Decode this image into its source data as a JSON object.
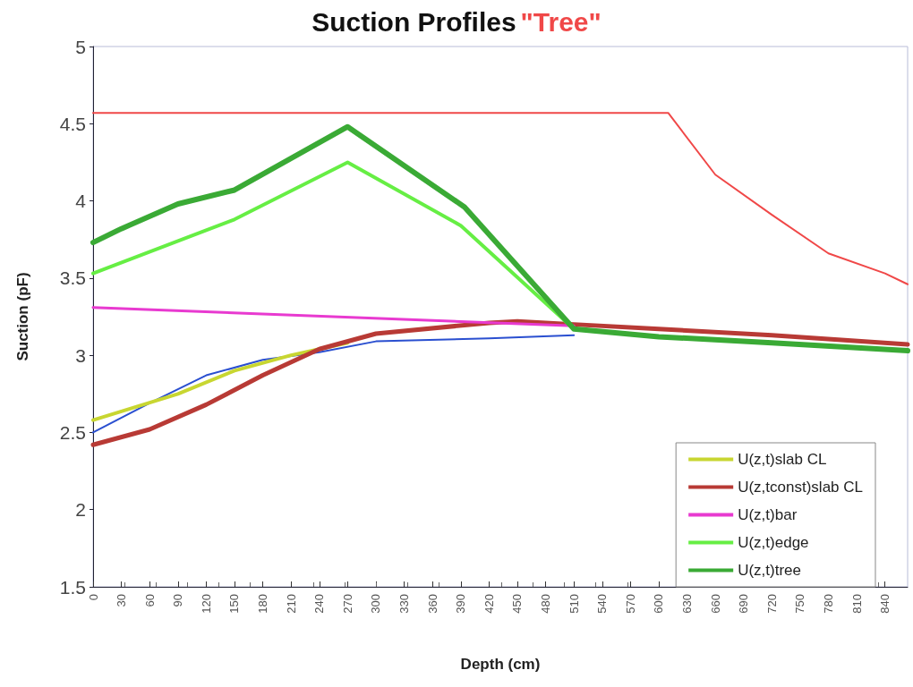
{
  "chart_data": {
    "type": "line",
    "title": "Suction Profiles",
    "subtitle": "\"Tree\"",
    "xlabel": "Depth (cm)",
    "ylabel": "Suction (pF)",
    "xlim": [
      0,
      864
    ],
    "xticks": [
      0,
      30,
      60,
      90,
      120,
      150,
      180,
      210,
      240,
      270,
      300,
      330,
      360,
      390,
      420,
      450,
      480,
      510,
      540,
      570,
      600,
      630,
      660,
      690,
      720,
      750,
      780,
      810,
      840
    ],
    "ylim": [
      1.5,
      5
    ],
    "yticks": [
      1.5,
      2,
      2.5,
      3,
      3.5,
      4,
      4.5,
      5
    ],
    "grid": false,
    "legend": "bottom right",
    "marker": "none",
    "line_style": "solid",
    "series": [
      {
        "color": "#f04848",
        "x": [
          0,
          610,
          660,
          720,
          780,
          840,
          864
        ],
        "values": [
          4.57,
          4.57,
          4.17,
          3.91,
          3.66,
          3.53,
          3.46
        ]
      },
      {
        "color": "#2a4fd0",
        "x": [
          0,
          60,
          120,
          180,
          240,
          300,
          420,
          510
        ],
        "values": [
          2.5,
          2.69,
          2.87,
          2.97,
          3.02,
          3.09,
          3.11,
          3.13
        ]
      },
      {
        "name": "U(z,t)slab CL",
        "color": "#c8d631",
        "x": [
          0,
          90,
          150,
          210,
          240,
          270
        ],
        "values": [
          2.58,
          2.75,
          2.9,
          3.0,
          3.04,
          3.08
        ]
      },
      {
        "name": "U(z,tconst)slab CL",
        "color": "#b83a35",
        "x": [
          0,
          60,
          120,
          180,
          240,
          300,
          420,
          450,
          510,
          600,
          720,
          864
        ],
        "values": [
          2.42,
          2.52,
          2.68,
          2.87,
          3.04,
          3.14,
          3.21,
          3.22,
          3.2,
          3.17,
          3.13,
          3.07
        ]
      },
      {
        "name": "U(z,t)bar",
        "color": "#e83ad0",
        "x": [
          0,
          510
        ],
        "values": [
          3.31,
          3.19
        ]
      },
      {
        "name": "U(z,t)edge",
        "color": "#66ee44",
        "x": [
          0,
          150,
          270,
          390,
          510,
          600,
          720,
          864
        ],
        "values": [
          3.53,
          3.88,
          4.25,
          3.84,
          3.17,
          3.12,
          3.08,
          3.03
        ]
      },
      {
        "name": "U(z,t)tree",
        "color": "#3aaa35",
        "x": [
          0,
          30,
          90,
          150,
          270,
          394,
          510,
          600,
          720,
          864
        ],
        "values": [
          3.73,
          3.82,
          3.98,
          4.07,
          4.48,
          3.96,
          3.17,
          3.12,
          3.08,
          3.03
        ]
      }
    ]
  }
}
